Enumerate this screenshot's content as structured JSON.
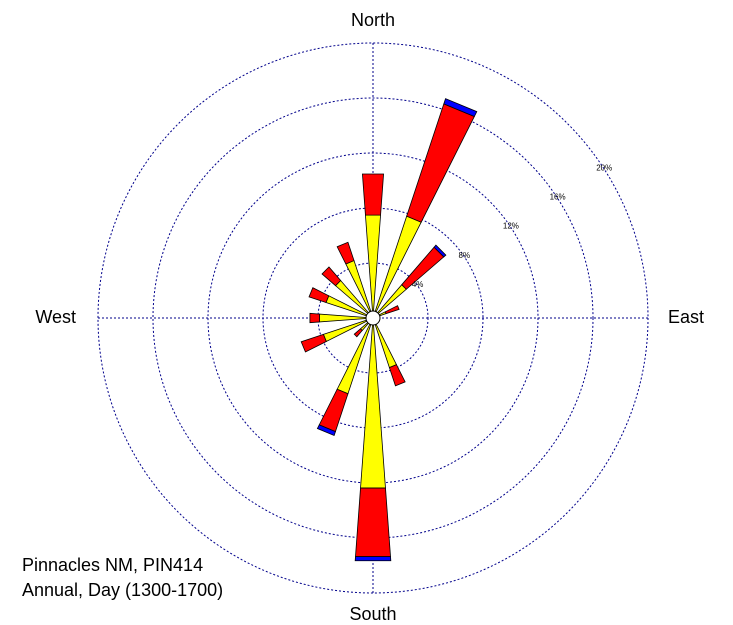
{
  "chart_data": {
    "type": "rose",
    "categories": [
      "North",
      null,
      null,
      null,
      "East",
      null,
      null,
      null,
      "South",
      null,
      null,
      null,
      "West",
      null,
      null,
      null
    ],
    "series": [
      {
        "color": "#ffff00",
        "values": [
          7.5,
          7.8,
          3.2,
          1.0,
          0.3,
          0.2,
          0.2,
          3.8,
          12.4,
          5.8,
          1.2,
          3.8,
          3.9,
          3.6,
          3.6,
          4.4
        ]
      },
      {
        "color": "#ff0000",
        "values": [
          3.0,
          8.6,
          3.6,
          1.0,
          0.0,
          0.0,
          0.0,
          1.4,
          5.0,
          2.9,
          0.6,
          1.7,
          0.7,
          1.3,
          1.3,
          1.4
        ]
      },
      {
        "color": "#0000ff",
        "values": [
          0.0,
          0.4,
          0.2,
          0.0,
          0.0,
          0.0,
          0.0,
          0.0,
          0.3,
          0.3,
          0.0,
          0.0,
          0.0,
          0.0,
          0.0,
          0.0
        ]
      }
    ],
    "rlim": [
      0,
      20
    ],
    "rticks": [
      {
        "value": 4,
        "label": "4%"
      },
      {
        "value": 8,
        "label": "8%"
      },
      {
        "value": 12,
        "label": "12%"
      },
      {
        "value": 16,
        "label": "16%"
      },
      {
        "value": 20,
        "label": "20%"
      }
    ],
    "annotations": [
      "Pinnacles NM, PIN414",
      "Annual, Day (1300-1700)"
    ]
  }
}
